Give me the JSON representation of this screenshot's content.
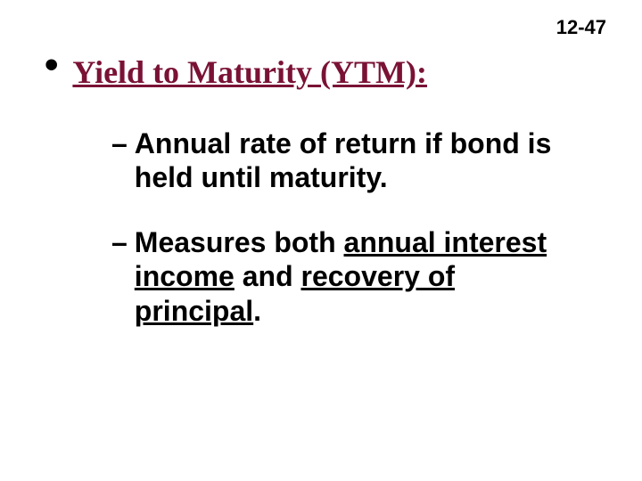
{
  "page_number": "12-47",
  "title": "Yield to Maturity (YTM):",
  "title_color": "#7a1235",
  "text_color": "#000000",
  "background_color": "#ffffff",
  "title_fontsize": 36,
  "body_fontsize": 32,
  "page_number_fontsize": 22,
  "bullet_char": "•",
  "dash_char": "–",
  "sub1_text": "Annual rate of return if bond is held until maturity.",
  "sub2_part1": "Measures both ",
  "sub2_u1": "annual interest income",
  "sub2_part2": " and ",
  "sub2_u2": "recovery of principal",
  "sub2_part3": "."
}
